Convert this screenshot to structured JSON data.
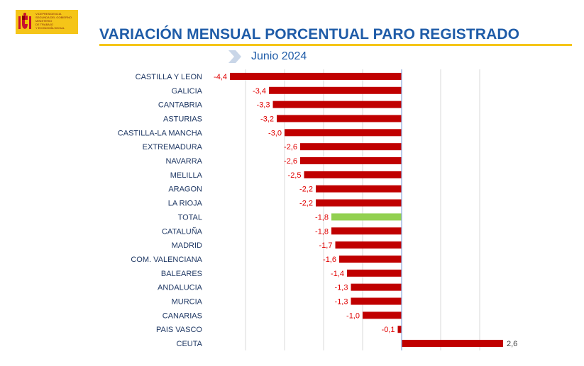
{
  "header": {
    "logo_lines": [
      "VICEPRESIDENCIA",
      "SEGUNDA DEL GOBIERNO",
      "MINISTERIO",
      "DE TRABAJO",
      "Y ECONOMÍA SOCIAL"
    ],
    "title": "VARIACIÓN MENSUAL PORCENTUAL PARO REGISTRADO",
    "subtitle": "Junio 2024"
  },
  "colors": {
    "bar": "#c00000",
    "total_bar": "#92d050",
    "negative_label": "#e00000",
    "positive_label": "#404040",
    "category_label": "#1f3864",
    "title": "#1f5ca8",
    "accent": "#f5c518",
    "axis": "#8ea9db",
    "grid": "#d9d9d9"
  },
  "chart_data": {
    "type": "bar",
    "orientation": "horizontal",
    "title": "VARIACIÓN MENSUAL PORCENTUAL PARO REGISTRADO",
    "subtitle": "Junio 2024",
    "xlabel": "",
    "ylabel": "",
    "xlim": [
      -4.5,
      2.9
    ],
    "grid": true,
    "categories": [
      "CASTILLA Y LEON",
      "GALICIA",
      "CANTABRIA",
      "ASTURIAS",
      "CASTILLA-LA MANCHA",
      "EXTREMADURA",
      "NAVARRA",
      "MELILLA",
      "ARAGON",
      "LA RIOJA",
      "TOTAL",
      "CATALUÑA",
      "MADRID",
      "COM. VALENCIANA",
      "BALEARES",
      "ANDALUCIA",
      "MURCIA",
      "CANARIAS",
      "PAIS VASCO",
      "CEUTA"
    ],
    "values": [
      -4.4,
      -3.4,
      -3.3,
      -3.2,
      -3.0,
      -2.6,
      -2.6,
      -2.5,
      -2.2,
      -2.2,
      -1.8,
      -1.8,
      -1.7,
      -1.6,
      -1.4,
      -1.3,
      -1.3,
      -1.0,
      -0.1,
      2.6
    ],
    "value_labels": [
      "-4,4",
      "-3,4",
      "-3,3",
      "-3,2",
      "-3,0",
      "-2,6",
      "-2,6",
      "-2,5",
      "-2,2",
      "-2,2",
      "-1,8",
      "-1,8",
      "-1,7",
      "-1,6",
      "-1,4",
      "-1,3",
      "-1,3",
      "-1,0",
      "-0,1",
      "2,6"
    ],
    "highlight": "TOTAL"
  }
}
